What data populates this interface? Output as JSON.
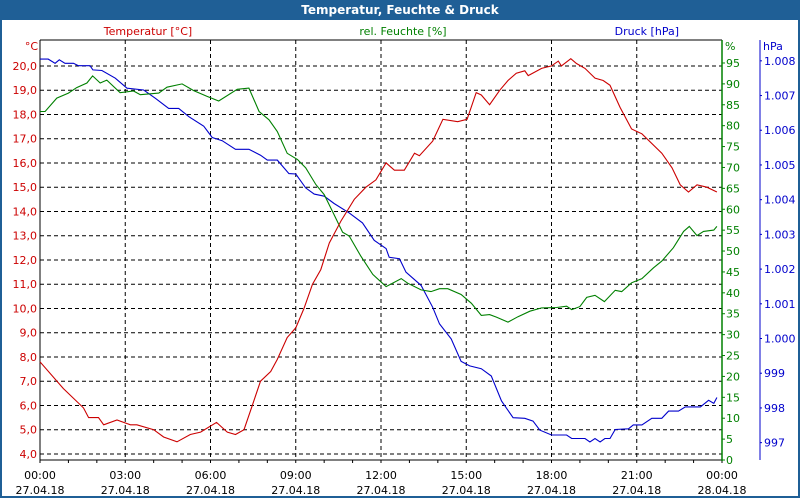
{
  "window": {
    "title": "Temperatur, Feuchte & Druck"
  },
  "chart_data": {
    "type": "line",
    "title": "Temperatur, Feuchte & Druck",
    "x_unit": "hours since 27.04.18 00:00",
    "xlim": [
      0,
      24
    ],
    "x_ticks": [
      {
        "t": 0,
        "time": "00:00",
        "date": "27.04.18"
      },
      {
        "t": 3,
        "time": "03:00",
        "date": "27.04.18"
      },
      {
        "t": 6,
        "time": "06:00",
        "date": "27.04.18"
      },
      {
        "t": 9,
        "time": "09:00",
        "date": "27.04.18"
      },
      {
        "t": 12,
        "time": "12:00",
        "date": "27.04.18"
      },
      {
        "t": 15,
        "time": "15:00",
        "date": "27.04.18"
      },
      {
        "t": 18,
        "time": "18:00",
        "date": "27.04.18"
      },
      {
        "t": 21,
        "time": "21:00",
        "date": "27.04.18"
      },
      {
        "t": 24,
        "time": "00:00",
        "date": "28.04.18"
      }
    ],
    "grid": true,
    "axes": {
      "temperature": {
        "legend": "Temperatur [°C]",
        "unit": "°C",
        "color": "#cc0000",
        "ylim": [
          3.75,
          21.07
        ],
        "ticks": [
          {
            "v": 20,
            "label": "20,0"
          },
          {
            "v": 19,
            "label": "19,0"
          },
          {
            "v": 18,
            "label": "18,0"
          },
          {
            "v": 17,
            "label": "17,0"
          },
          {
            "v": 16,
            "label": "16,0"
          },
          {
            "v": 15,
            "label": "15,0"
          },
          {
            "v": 14,
            "label": "14,0"
          },
          {
            "v": 13,
            "label": "13,0"
          },
          {
            "v": 12,
            "label": "12,0"
          },
          {
            "v": 11,
            "label": "11,0"
          },
          {
            "v": 10,
            "label": "10,0"
          },
          {
            "v": 9,
            "label": "9,0"
          },
          {
            "v": 8,
            "label": "8,0"
          },
          {
            "v": 7,
            "label": "7,0"
          },
          {
            "v": 6,
            "label": "6,0"
          },
          {
            "v": 5,
            "label": "5,0"
          },
          {
            "v": 4,
            "label": "4,0"
          }
        ]
      },
      "humidity": {
        "legend": "rel. Feuchte [%]",
        "unit": "%",
        "color": "#008000",
        "ylim": [
          0,
          100.5
        ],
        "ticks": [
          {
            "v": 95,
            "label": "95"
          },
          {
            "v": 90,
            "label": "90"
          },
          {
            "v": 85,
            "label": "85"
          },
          {
            "v": 80,
            "label": "80"
          },
          {
            "v": 75,
            "label": "75"
          },
          {
            "v": 70,
            "label": "70"
          },
          {
            "v": 65,
            "label": "65"
          },
          {
            "v": 60,
            "label": "60"
          },
          {
            "v": 55,
            "label": "55"
          },
          {
            "v": 50,
            "label": "50"
          },
          {
            "v": 45,
            "label": "45"
          },
          {
            "v": 40,
            "label": "40"
          },
          {
            "v": 35,
            "label": "35"
          },
          {
            "v": 30,
            "label": "30"
          },
          {
            "v": 25,
            "label": "25"
          },
          {
            "v": 20,
            "label": "20"
          },
          {
            "v": 15,
            "label": "15"
          },
          {
            "v": 10,
            "label": "10"
          },
          {
            "v": 5,
            "label": "5"
          },
          {
            "v": 0,
            "label": "0"
          }
        ]
      },
      "pressure": {
        "legend": "Druck [hPa]",
        "unit": "hPa",
        "color": "#0000cc",
        "ylim": [
          996.5,
          1008.6
        ],
        "ticks": [
          {
            "v": 1008,
            "label": "1.008"
          },
          {
            "v": 1007,
            "label": "1.007"
          },
          {
            "v": 1006,
            "label": "1.006"
          },
          {
            "v": 1005,
            "label": "1.005"
          },
          {
            "v": 1004,
            "label": "1.004"
          },
          {
            "v": 1003,
            "label": "1.003"
          },
          {
            "v": 1002,
            "label": "1.002"
          },
          {
            "v": 1001,
            "label": "1.001"
          },
          {
            "v": 1000,
            "label": "1.000"
          },
          {
            "v": 999,
            "label": "999"
          },
          {
            "v": 998,
            "label": "998"
          },
          {
            "v": 997,
            "label": "997"
          }
        ]
      }
    },
    "series": [
      {
        "name": "Temperatur [°C]",
        "axis": "temperature",
        "color": "#cc0000",
        "t": [
          0,
          0.82,
          1.53,
          1.71,
          2.06,
          2.24,
          2.71,
          3.18,
          3.41,
          4.0,
          4.35,
          4.82,
          5.29,
          5.65,
          6.21,
          6.59,
          6.88,
          7.18,
          7.47,
          7.76,
          8.12,
          8.35,
          8.7,
          9.0,
          9.29,
          9.59,
          9.88,
          10.18,
          10.59,
          11.06,
          11.47,
          11.82,
          12.18,
          12.47,
          12.82,
          13.18,
          13.35,
          13.82,
          14.18,
          14.7,
          15.03,
          15.35,
          15.53,
          15.82,
          16.18,
          16.47,
          16.76,
          17.06,
          17.18,
          17.65,
          18.0,
          18.24,
          18.35,
          18.68,
          18.88,
          19.18,
          19.53,
          19.82,
          20.06,
          20.41,
          20.82,
          21.18,
          21.88,
          22.24,
          22.53,
          22.82,
          23.12,
          23.47,
          23.82
        ],
        "values": [
          7.8,
          6.7,
          5.9,
          5.5,
          5.5,
          5.2,
          5.4,
          5.2,
          5.2,
          5.0,
          4.7,
          4.5,
          4.8,
          4.9,
          5.3,
          4.9,
          4.8,
          5.0,
          6.0,
          7.0,
          7.4,
          7.9,
          8.8,
          9.2,
          10.0,
          11.0,
          11.6,
          12.7,
          13.6,
          14.5,
          15.0,
          15.3,
          16.0,
          15.7,
          15.7,
          16.4,
          16.3,
          16.9,
          17.8,
          17.7,
          17.8,
          18.9,
          18.8,
          18.4,
          19.0,
          19.4,
          19.7,
          19.8,
          19.6,
          19.9,
          20.0,
          20.2,
          20.0,
          20.3,
          20.1,
          19.9,
          19.5,
          19.4,
          19.2,
          18.3,
          17.4,
          17.2,
          16.4,
          15.8,
          15.1,
          14.8,
          15.1,
          15.0,
          14.8
        ]
      },
      {
        "name": "rel. Feuchte [%]",
        "axis": "humidity",
        "color": "#008000",
        "t": [
          0,
          0.18,
          0.59,
          1.0,
          1.29,
          1.65,
          1.85,
          2.12,
          2.35,
          2.82,
          3.29,
          3.53,
          4.18,
          4.47,
          5.0,
          5.41,
          5.88,
          6.29,
          6.94,
          7.35,
          7.71,
          8.06,
          8.35,
          8.7,
          9.06,
          9.35,
          9.71,
          10.0,
          10.29,
          10.65,
          10.88,
          11.29,
          11.71,
          12.18,
          12.71,
          12.94,
          13.41,
          13.76,
          14.06,
          14.35,
          14.82,
          15.18,
          15.53,
          15.82,
          16.06,
          16.47,
          16.82,
          17.24,
          17.65,
          18.18,
          18.53,
          18.71,
          19.0,
          19.24,
          19.53,
          19.86,
          20.24,
          20.47,
          20.82,
          21.18,
          21.59,
          21.88,
          22.29,
          22.65,
          22.85,
          23.12,
          23.35,
          23.71,
          23.82
        ],
        "values": [
          83.4,
          83.4,
          86.6,
          87.8,
          89.1,
          90.2,
          91.9,
          90.2,
          90.9,
          87.9,
          88.3,
          87.4,
          87.8,
          89.2,
          90.0,
          88.4,
          87.0,
          85.9,
          88.7,
          89.0,
          83.4,
          81.4,
          78.6,
          73.4,
          71.9,
          69.9,
          65.9,
          63.5,
          59.5,
          54.5,
          53.6,
          48.8,
          44.4,
          41.5,
          43.4,
          42.3,
          40.7,
          40.3,
          41.0,
          41.0,
          39.6,
          37.5,
          34.6,
          34.8,
          34.2,
          33.0,
          34.3,
          35.6,
          36.4,
          36.5,
          36.8,
          36.0,
          36.7,
          38.9,
          39.4,
          37.9,
          40.6,
          40.3,
          42.4,
          43.4,
          46.0,
          47.6,
          50.8,
          54.7,
          55.9,
          53.7,
          54.7,
          55.0,
          55.9
        ]
      },
      {
        "name": "Druck [hPa]",
        "axis": "pressure",
        "color": "#0000cc",
        "t": [
          0,
          0.29,
          0.53,
          0.68,
          0.88,
          1.18,
          1.35,
          1.76,
          1.86,
          2.18,
          2.65,
          3.06,
          3.65,
          4.06,
          4.53,
          4.88,
          5.24,
          5.76,
          6.06,
          6.41,
          6.88,
          7.35,
          7.76,
          8.0,
          8.35,
          8.76,
          9.0,
          9.35,
          9.65,
          10.0,
          10.35,
          10.88,
          11.35,
          11.76,
          12.18,
          12.29,
          12.65,
          12.88,
          13.41,
          13.82,
          14.06,
          14.47,
          14.82,
          15.12,
          15.53,
          15.88,
          16.24,
          16.65,
          17.06,
          17.35,
          17.59,
          18.0,
          18.53,
          18.71,
          19.18,
          19.35,
          19.53,
          19.71,
          19.88,
          20.06,
          20.24,
          20.71,
          20.88,
          21.18,
          21.53,
          21.88,
          22.12,
          22.47,
          22.71,
          23.24,
          23.53,
          23.71,
          23.82
        ],
        "values": [
          1008.05,
          1008.05,
          1007.93,
          1008.03,
          1007.93,
          1007.93,
          1007.86,
          1007.86,
          1007.74,
          1007.72,
          1007.5,
          1007.21,
          1007.16,
          1006.92,
          1006.63,
          1006.63,
          1006.39,
          1006.12,
          1005.79,
          1005.7,
          1005.45,
          1005.45,
          1005.28,
          1005.14,
          1005.14,
          1004.75,
          1004.74,
          1004.34,
          1004.16,
          1004.1,
          1003.89,
          1003.62,
          1003.33,
          1002.83,
          1002.59,
          1002.34,
          1002.3,
          1001.91,
          1001.53,
          1000.9,
          1000.42,
          999.99,
          999.34,
          999.21,
          999.13,
          998.92,
          998.2,
          997.72,
          997.7,
          997.62,
          997.36,
          997.22,
          997.22,
          997.12,
          997.12,
          997.02,
          997.12,
          997.02,
          997.12,
          997.12,
          997.38,
          997.4,
          997.51,
          997.51,
          997.7,
          997.7,
          997.91,
          997.91,
          998.03,
          998.03,
          998.22,
          998.13,
          998.3
        ]
      }
    ]
  }
}
